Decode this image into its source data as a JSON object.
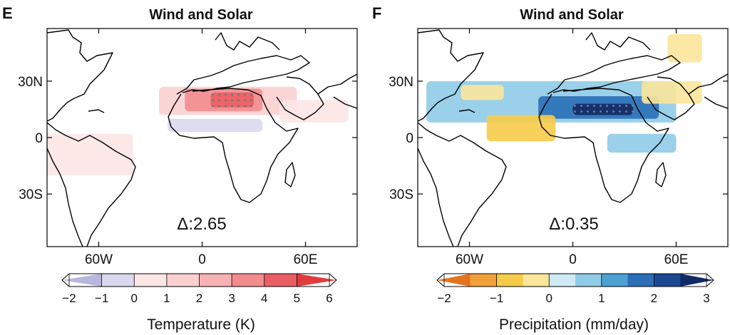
{
  "chart_data": [
    {
      "type": "heatmap",
      "panel_letter": "E",
      "title": "Wind and Solar",
      "variable": "Temperature (K)",
      "x_ticks": [
        "60W",
        "0",
        "60E"
      ],
      "y_ticks": [
        "30N",
        "0",
        "30S"
      ],
      "lon_range": [
        -90,
        90
      ],
      "lat_range": [
        -58,
        58
      ],
      "annotation": "Δ:2.65",
      "colorbar": {
        "label": "Temperature (K)",
        "tick_labels": [
          "−2",
          "−1",
          "0",
          "1",
          "2",
          "3",
          "4",
          "5",
          "6"
        ],
        "range": [
          -2,
          6
        ],
        "colors": [
          "#b9b6dc",
          "#d9d8ee",
          "#fde6e6",
          "#fbd0d0",
          "#f7b2b3",
          "#f28c8e",
          "#ea5f63",
          "#e23b3f"
        ]
      },
      "regions": [
        {
          "lon": [
            -25,
            55
          ],
          "lat": [
            12,
            27
          ],
          "value": 1.5
        },
        {
          "lon": [
            -10,
            35
          ],
          "lat": [
            14,
            26
          ],
          "value": 3.0
        },
        {
          "lon": [
            5,
            30
          ],
          "lat": [
            16,
            24
          ],
          "value": 4.5
        },
        {
          "lon": [
            -95,
            -40
          ],
          "lat": [
            -20,
            2
          ],
          "value": 0.5
        },
        {
          "lon": [
            45,
            85
          ],
          "lat": [
            8,
            20
          ],
          "value": 0.5
        },
        {
          "lon": [
            -20,
            35
          ],
          "lat": [
            3,
            10
          ],
          "value": -0.5
        }
      ]
    },
    {
      "type": "heatmap",
      "panel_letter": "F",
      "title": "Wind and Solar",
      "variable": "Precipitation (mm/day)",
      "x_ticks": [
        "60W",
        "0",
        "60E"
      ],
      "y_ticks": [
        "30N",
        "0",
        "30S"
      ],
      "lon_range": [
        -90,
        90
      ],
      "lat_range": [
        -58,
        58
      ],
      "annotation": "Δ:0.35",
      "colorbar": {
        "label": "Precipitation (mm/day)",
        "tick_labels": [
          "−2",
          "−1",
          "0",
          "1",
          "2",
          "3"
        ],
        "range": [
          -2,
          3
        ],
        "colors": [
          "#e3731d",
          "#f2a13a",
          "#f7cb4a",
          "#fbe69a",
          "#cfe9f5",
          "#8fcbe7",
          "#4da1d3",
          "#2a6fb8",
          "#1c4a92",
          "#0f2a66"
        ]
      },
      "regions": [
        {
          "lon": [
            -85,
            60
          ],
          "lat": [
            8,
            30
          ],
          "value": 0.75
        },
        {
          "lon": [
            -20,
            50
          ],
          "lat": [
            10,
            22
          ],
          "value": 1.5
        },
        {
          "lon": [
            0,
            35
          ],
          "lat": [
            12,
            18
          ],
          "value": 2.5
        },
        {
          "lon": [
            -50,
            -10
          ],
          "lat": [
            -2,
            12
          ],
          "value": -0.75
        },
        {
          "lon": [
            -65,
            -40
          ],
          "lat": [
            20,
            28
          ],
          "value": -0.5
        },
        {
          "lon": [
            40,
            75
          ],
          "lat": [
            18,
            30
          ],
          "value": -0.5
        },
        {
          "lon": [
            55,
            75
          ],
          "lat": [
            40,
            55
          ],
          "value": -0.5
        },
        {
          "lon": [
            20,
            60
          ],
          "lat": [
            -8,
            2
          ],
          "value": 0.75
        }
      ]
    }
  ]
}
